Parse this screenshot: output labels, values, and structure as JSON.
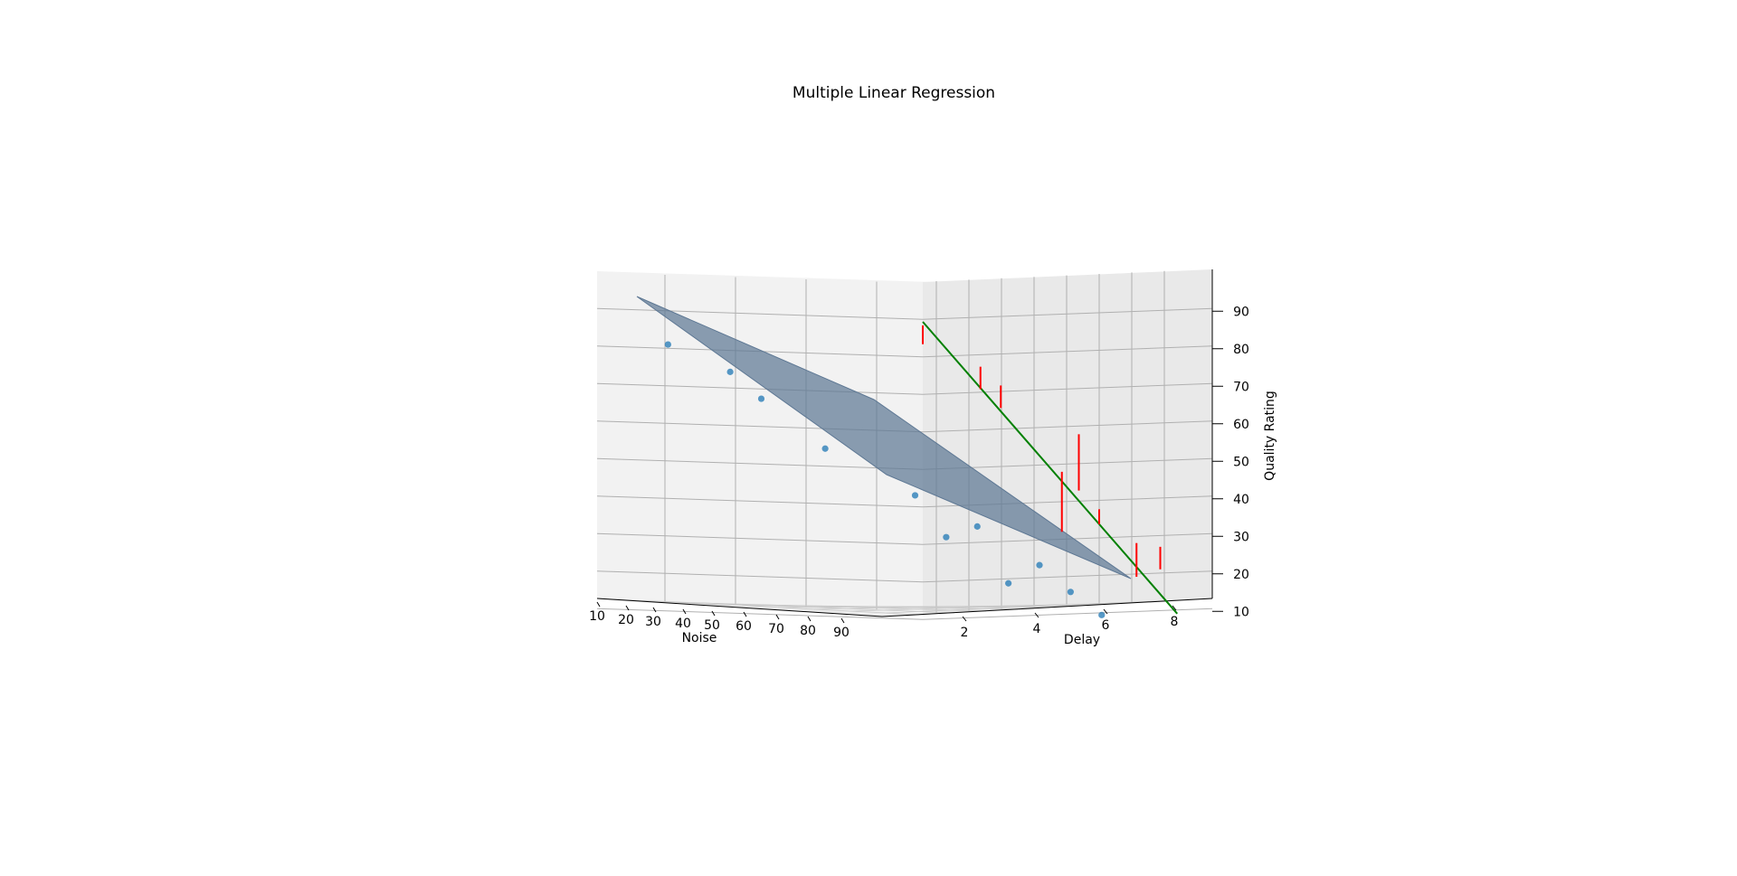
{
  "chart_data": {
    "type": "scatter",
    "title": "Multiple Linear Regression",
    "xlabel": "Noise",
    "ylabel": "Delay",
    "zlabel": "Quality Rating",
    "x_ticks": [
      "10",
      "20",
      "30",
      "40",
      "50",
      "60",
      "70",
      "80",
      "90"
    ],
    "y_ticks": [
      "2",
      "4",
      "6",
      "8"
    ],
    "z_ticks": [
      "10",
      "20",
      "30",
      "40",
      "50",
      "60",
      "70",
      "80",
      "90"
    ],
    "xlim": [
      10,
      90
    ],
    "ylim": [
      0.5,
      8.5
    ],
    "zlim": [
      5,
      92
    ],
    "grid": true,
    "series": [
      {
        "type": "scatter",
        "color": "#1f77b4",
        "points": [
          {
            "noise": 15,
            "delay": 1.0,
            "quality": 82
          },
          {
            "noise": 25,
            "delay": 2.0,
            "quality": 75
          },
          {
            "noise": 30,
            "delay": 2.5,
            "quality": 68
          },
          {
            "noise": 40,
            "delay": 4.0,
            "quality": 55
          },
          {
            "noise": 55,
            "delay": 4.5,
            "quality": 43
          },
          {
            "noise": 60,
            "delay": 5.0,
            "quality": 32
          },
          {
            "noise": 65,
            "delay": 5.5,
            "quality": 35
          },
          {
            "noise": 70,
            "delay": 6.0,
            "quality": 20
          },
          {
            "noise": 75,
            "delay": 6.5,
            "quality": 25
          },
          {
            "noise": 80,
            "delay": 7.0,
            "quality": 18
          },
          {
            "noise": 85,
            "delay": 7.5,
            "quality": 12
          }
        ]
      },
      {
        "type": "surface",
        "color": "#5e7894",
        "note": "fitted regression plane"
      },
      {
        "type": "line",
        "color": "#008000",
        "delay": [
          0.5,
          8.0
        ],
        "quality": [
          85,
          13
        ]
      },
      {
        "type": "residuals",
        "color": "#ff0000",
        "segments": [
          {
            "delay": 0.5,
            "from": 85,
            "to": 80
          },
          {
            "delay": 2.2,
            "from": 68,
            "to": 74
          },
          {
            "delay": 2.8,
            "from": 63,
            "to": 69
          },
          {
            "delay": 4.6,
            "from": 46,
            "to": 30
          },
          {
            "delay": 5.1,
            "from": 41,
            "to": 56
          },
          {
            "delay": 5.7,
            "from": 36,
            "to": 32
          },
          {
            "delay": 6.8,
            "from": 27,
            "to": 18
          },
          {
            "delay": 7.5,
            "from": 20,
            "to": 26
          }
        ]
      }
    ]
  }
}
